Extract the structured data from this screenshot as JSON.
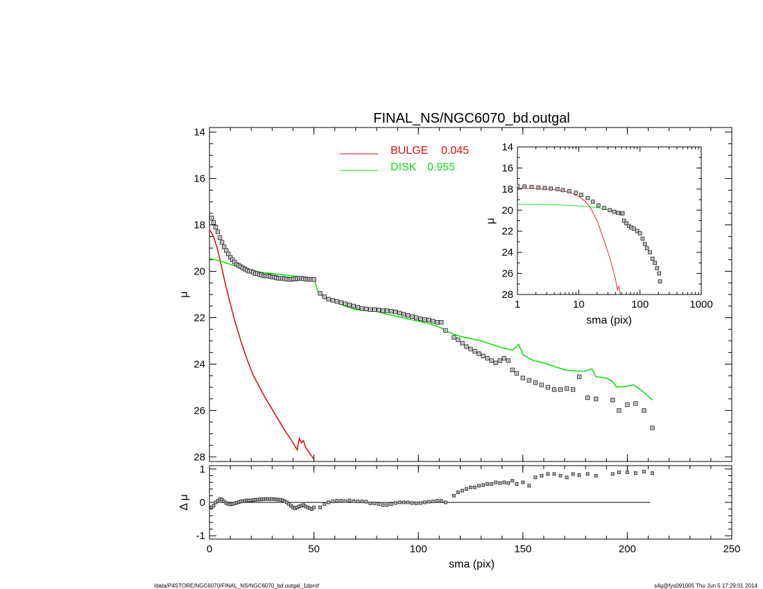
{
  "footer": {
    "left": "/data/P4STORE/NGC6070/FINAL_NS/NGC6070_bd.outgal_1dprof",
    "right": "s4g@fys091005  Thu Jun  5 17:29:01 2014"
  },
  "colors": {
    "bulge": "#dd1111",
    "disk": "#11dd11",
    "data": "#333333",
    "axes": "#000000"
  },
  "chart_data": [
    {
      "panel": "main",
      "type": "line",
      "title": "FINAL_NS/NGC6070_bd.outgal",
      "xlabel": "",
      "ylabel": "μ",
      "xlim": [
        0,
        250
      ],
      "ylim": [
        28.2,
        13.8
      ],
      "y_inverted": true,
      "xticks": [
        0,
        50,
        100,
        150,
        200,
        250
      ],
      "yticks": [
        14,
        16,
        18,
        20,
        22,
        24,
        26,
        28
      ],
      "legend": [
        {
          "name": "BULGE",
          "value": "0.045",
          "color": "#dd1111"
        },
        {
          "name": "DISK",
          "value": "0.955",
          "color": "#11dd11"
        }
      ],
      "series": [
        {
          "name": "BULGE",
          "style": "line",
          "color": "#dd1111",
          "x": [
            0,
            2,
            4,
            6,
            8,
            10,
            12,
            15,
            18,
            21,
            24,
            27,
            30,
            33,
            36,
            39,
            42,
            43,
            44,
            45,
            46,
            48,
            50
          ],
          "y": [
            18.2,
            18.5,
            19.1,
            19.9,
            20.7,
            21.4,
            22.1,
            23.0,
            23.8,
            24.5,
            25.0,
            25.5,
            25.95,
            26.4,
            26.85,
            27.25,
            27.7,
            27.2,
            27.4,
            27.3,
            27.6,
            27.85,
            28.1
          ]
        },
        {
          "name": "DISK",
          "style": "line",
          "color": "#11dd11",
          "x": [
            0,
            5,
            10,
            15,
            20,
            25,
            30,
            35,
            40,
            45,
            50,
            52,
            55,
            60,
            65,
            70,
            75,
            80,
            85,
            90,
            95,
            100,
            105,
            110,
            113,
            115,
            120,
            130,
            140,
            145,
            148,
            150,
            155,
            160,
            165,
            170,
            175,
            180,
            183,
            185,
            190,
            193,
            195,
            200,
            203,
            207,
            212
          ],
          "y": [
            19.45,
            19.55,
            19.7,
            19.85,
            19.95,
            20.05,
            20.1,
            20.15,
            20.2,
            20.25,
            20.3,
            20.9,
            21.15,
            21.3,
            21.5,
            21.65,
            21.7,
            21.72,
            21.85,
            21.95,
            22.05,
            22.15,
            22.25,
            22.4,
            22.55,
            22.65,
            22.8,
            23.0,
            23.3,
            23.4,
            23.15,
            23.6,
            23.85,
            23.95,
            24.1,
            24.25,
            24.3,
            24.3,
            24.2,
            24.55,
            24.6,
            24.75,
            25.0,
            24.95,
            24.9,
            25.15,
            25.55
          ]
        },
        {
          "name": "",
          "style": "markers",
          "color": "#333333",
          "x": [
            1,
            2,
            3,
            4,
            5,
            6,
            7,
            8,
            9,
            10,
            11,
            12,
            13,
            14,
            15,
            16,
            17,
            18,
            19,
            20,
            21,
            22,
            23,
            24,
            25,
            26,
            27,
            28,
            29,
            30,
            31,
            32,
            33,
            34,
            35,
            36,
            37,
            38,
            39,
            40,
            41,
            42,
            43,
            44,
            45,
            46,
            47,
            48,
            49,
            50,
            53,
            55,
            57,
            59,
            61,
            63,
            65,
            67,
            69,
            71,
            73,
            75,
            77,
            79,
            81,
            83,
            85,
            87,
            89,
            91,
            93,
            95,
            97,
            99,
            101,
            103,
            105,
            107,
            109,
            111,
            113,
            117,
            119,
            121,
            123,
            125,
            127,
            129,
            131,
            133,
            135,
            137,
            139,
            141,
            143,
            145,
            147,
            150,
            153,
            156,
            159,
            162,
            165,
            168,
            171,
            174,
            177,
            181,
            185,
            193,
            196,
            200,
            204,
            208,
            212
          ],
          "y": [
            17.7,
            17.9,
            18.1,
            18.3,
            18.55,
            18.75,
            18.95,
            19.1,
            19.25,
            19.4,
            19.5,
            19.6,
            19.7,
            19.75,
            19.8,
            19.85,
            19.9,
            19.95,
            20.0,
            20.0,
            20.05,
            20.1,
            20.1,
            20.15,
            20.15,
            20.2,
            20.2,
            20.2,
            20.22,
            20.25,
            20.25,
            20.28,
            20.3,
            20.3,
            20.3,
            20.32,
            20.33,
            20.35,
            20.35,
            20.33,
            20.33,
            20.32,
            20.3,
            20.3,
            20.32,
            20.33,
            20.35,
            20.35,
            20.35,
            20.35,
            20.95,
            21.1,
            21.2,
            21.25,
            21.3,
            21.35,
            21.4,
            21.45,
            21.5,
            21.55,
            21.6,
            21.62,
            21.65,
            21.65,
            21.67,
            21.7,
            21.7,
            21.72,
            21.75,
            21.8,
            21.85,
            21.9,
            21.95,
            22.0,
            22.05,
            22.08,
            22.1,
            22.15,
            22.2,
            22.2,
            22.55,
            22.85,
            22.95,
            23.1,
            23.25,
            23.35,
            23.45,
            23.55,
            23.65,
            23.75,
            23.85,
            23.95,
            23.85,
            23.75,
            23.85,
            24.25,
            24.4,
            24.6,
            24.7,
            24.8,
            24.9,
            25.0,
            25.1,
            25.1,
            25.05,
            25.1,
            24.55,
            25.45,
            25.5,
            25.55,
            26.0,
            25.75,
            25.7,
            26.0,
            26.75
          ]
        }
      ]
    },
    {
      "panel": "inset",
      "type": "line",
      "title": "",
      "xlabel": "sma (pix)",
      "ylabel": "μ",
      "xscale": "log",
      "xlim": [
        1,
        1000
      ],
      "ylim": [
        28,
        14
      ],
      "y_inverted": true,
      "xticks": [
        1,
        10,
        100,
        1000
      ],
      "xticklabels": [
        "1",
        "10",
        "100",
        "1000"
      ],
      "yticks": [
        14,
        16,
        18,
        20,
        22,
        24,
        26,
        28
      ],
      "series": [
        {
          "name": "BULGE",
          "style": "line",
          "color": "#dd1111",
          "x": [
            1,
            2,
            4,
            7,
            10,
            13,
            16,
            20,
            25,
            30,
            35,
            40,
            43,
            45,
            48
          ],
          "y": [
            17.9,
            17.95,
            18.05,
            18.3,
            18.7,
            19.2,
            19.9,
            21.0,
            22.6,
            24.0,
            25.3,
            26.6,
            27.6,
            27.2,
            28.0
          ]
        },
        {
          "name": "DISK",
          "style": "line",
          "color": "#11dd11",
          "x": [
            1,
            2,
            5,
            10,
            20,
            30,
            40,
            50
          ],
          "y": [
            19.45,
            19.45,
            19.5,
            19.6,
            19.75,
            19.95,
            20.15,
            20.3
          ]
        },
        {
          "name": "",
          "style": "markers",
          "color": "#333333",
          "x": [
            1,
            1.3,
            1.7,
            2.2,
            2.8,
            3.5,
            4.5,
            5.5,
            7,
            9,
            11,
            14,
            17,
            21,
            26,
            32,
            38,
            44,
            50,
            52,
            55,
            60,
            66,
            72,
            80,
            90,
            100,
            110,
            120,
            130,
            145,
            160,
            175,
            190,
            205,
            212
          ],
          "y": [
            17.7,
            17.75,
            17.8,
            17.85,
            17.9,
            17.95,
            18.0,
            18.1,
            18.2,
            18.35,
            18.55,
            18.85,
            19.2,
            19.55,
            19.8,
            20.0,
            20.15,
            20.25,
            20.3,
            20.3,
            21.0,
            21.25,
            21.5,
            21.65,
            21.75,
            22.0,
            22.2,
            22.7,
            23.2,
            23.6,
            24.0,
            24.6,
            25.0,
            25.5,
            26.0,
            26.75
          ]
        }
      ]
    },
    {
      "panel": "residual",
      "type": "scatter",
      "title": "",
      "xlabel": "sma (pix)",
      "ylabel": "Δ μ",
      "xlim": [
        0,
        250
      ],
      "ylim": [
        -1.1,
        1.1
      ],
      "xticks": [
        0,
        50,
        100,
        150,
        200,
        250
      ],
      "yticks": [
        -1,
        0,
        1
      ],
      "zero_line_x": [
        0,
        211
      ],
      "series": [
        {
          "name": "",
          "style": "markers",
          "color": "#333333",
          "x": [
            1,
            2,
            3,
            4,
            5,
            6,
            7,
            8,
            9,
            10,
            11,
            12,
            13,
            14,
            15,
            16,
            17,
            18,
            19,
            20,
            21,
            22,
            23,
            24,
            25,
            26,
            27,
            28,
            29,
            30,
            31,
            32,
            33,
            34,
            35,
            36,
            37,
            38,
            39,
            40,
            41,
            42,
            43,
            44,
            45,
            46,
            47,
            48,
            49,
            50,
            53,
            55,
            57,
            59,
            61,
            63,
            65,
            67,
            69,
            71,
            73,
            75,
            77,
            79,
            81,
            83,
            85,
            87,
            89,
            91,
            93,
            95,
            97,
            99,
            101,
            103,
            105,
            107,
            109,
            111,
            113,
            117,
            119,
            121,
            123,
            125,
            127,
            129,
            131,
            133,
            135,
            137,
            139,
            141,
            143,
            145,
            147,
            150,
            153,
            156,
            159,
            162,
            165,
            168,
            171,
            174,
            177,
            181,
            185,
            193,
            196,
            200,
            204,
            208,
            212
          ],
          "y": [
            -0.15,
            -0.1,
            0.0,
            0.05,
            0.1,
            0.08,
            0.03,
            -0.02,
            -0.05,
            -0.06,
            -0.05,
            -0.03,
            -0.01,
            0.01,
            0.03,
            0.04,
            0.05,
            0.06,
            0.06,
            0.06,
            0.07,
            0.08,
            0.08,
            0.09,
            0.09,
            0.1,
            0.1,
            0.1,
            0.1,
            0.1,
            0.1,
            0.09,
            0.08,
            0.08,
            0.06,
            0.04,
            0.0,
            -0.05,
            -0.1,
            -0.15,
            -0.18,
            -0.15,
            -0.12,
            -0.1,
            -0.08,
            -0.12,
            -0.15,
            -0.18,
            -0.2,
            -0.15,
            -0.15,
            -0.05,
            0.0,
            0.03,
            0.05,
            0.05,
            0.04,
            0.06,
            0.04,
            0.03,
            0.03,
            0.02,
            -0.03,
            -0.03,
            -0.05,
            -0.08,
            -0.08,
            -0.05,
            -0.02,
            0.0,
            0.0,
            0.0,
            -0.02,
            -0.03,
            -0.02,
            0.0,
            0.02,
            0.03,
            0.05,
            0.05,
            0.0,
            0.2,
            0.3,
            0.35,
            0.4,
            0.45,
            0.45,
            0.5,
            0.52,
            0.55,
            0.55,
            0.6,
            0.58,
            0.6,
            0.58,
            0.65,
            0.55,
            0.6,
            0.5,
            0.75,
            0.8,
            0.85,
            0.85,
            0.8,
            0.75,
            0.85,
            0.82,
            0.85,
            0.8,
            0.85,
            0.9,
            0.9,
            0.88,
            0.92,
            0.88
          ]
        }
      ]
    }
  ]
}
